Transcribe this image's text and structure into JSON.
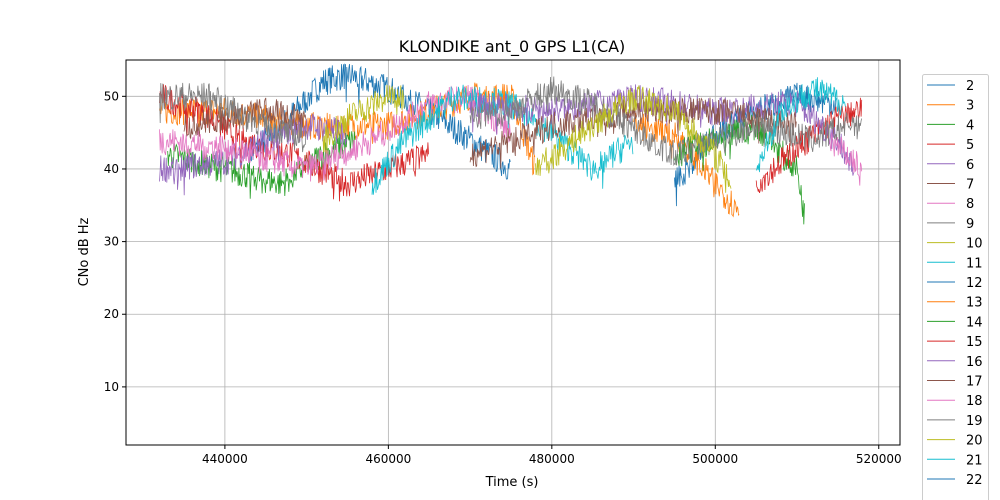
{
  "chart_data": {
    "type": "line",
    "title": "KLONDIKE ant_0 GPS L1(CA)",
    "xlabel": "Time (s)",
    "ylabel": "CNo dB Hz",
    "xlim": [
      427900,
      522600
    ],
    "ylim": [
      2,
      55
    ],
    "xticks": [
      440000,
      460000,
      480000,
      500000,
      520000
    ],
    "yticks": [
      10,
      20,
      30,
      40,
      50
    ],
    "grid": true,
    "legend_placement": "right-outside",
    "colors": [
      "#1f77b4",
      "#ff7f0e",
      "#2ca02c",
      "#d62728",
      "#9467bd",
      "#8c564b",
      "#e377c2",
      "#7f7f7f",
      "#bcbd22",
      "#17becf"
    ],
    "series": [
      {
        "name": "2",
        "points": [
          [
            443000,
            42
          ],
          [
            447000,
            46
          ],
          [
            452000,
            52
          ],
          [
            455000,
            53
          ],
          [
            460000,
            51
          ],
          [
            465000,
            48
          ],
          [
            470000,
            44
          ],
          [
            475000,
            40
          ]
        ]
      },
      {
        "name": "3",
        "points": [
          [
            432000,
            48
          ],
          [
            440000,
            48
          ],
          [
            450000,
            46
          ],
          [
            460000,
            46
          ],
          [
            470000,
            50
          ],
          [
            475000,
            50
          ],
          [
            478000,
            40
          ]
        ]
      },
      {
        "name": "4",
        "points": [
          [
            433000,
            42
          ],
          [
            440000,
            40
          ],
          [
            447000,
            38
          ],
          [
            452000,
            42
          ],
          [
            456000,
            44
          ]
        ]
      },
      {
        "name": "5",
        "points": [
          [
            432000,
            50
          ],
          [
            437000,
            48
          ],
          [
            442000,
            44
          ],
          [
            448000,
            42
          ],
          [
            455000,
            38
          ],
          [
            460000,
            40
          ],
          [
            465000,
            42
          ]
        ]
      },
      {
        "name": "6",
        "points": [
          [
            432000,
            40
          ],
          [
            440000,
            41
          ],
          [
            445000,
            44
          ],
          [
            450000,
            46
          ],
          [
            455000,
            45
          ]
        ]
      },
      {
        "name": "7",
        "points": [
          [
            435000,
            46
          ],
          [
            440000,
            47
          ],
          [
            445000,
            48
          ],
          [
            450000,
            47
          ]
        ]
      },
      {
        "name": "8",
        "points": [
          [
            432000,
            44
          ],
          [
            440000,
            43
          ],
          [
            450000,
            40
          ],
          [
            458000,
            44
          ],
          [
            465000,
            49
          ],
          [
            470000,
            50
          ],
          [
            475000,
            45
          ]
        ]
      },
      {
        "name": "9",
        "points": [
          [
            432000,
            50
          ],
          [
            438000,
            50
          ],
          [
            445000,
            46
          ],
          [
            450000,
            44
          ]
        ]
      },
      {
        "name": "10",
        "points": [
          [
            452000,
            44
          ],
          [
            455000,
            47
          ],
          [
            460000,
            50
          ],
          [
            462000,
            50
          ]
        ]
      },
      {
        "name": "11",
        "points": [
          [
            458000,
            38
          ],
          [
            462000,
            44
          ],
          [
            468000,
            50
          ],
          [
            475000,
            49
          ],
          [
            480000,
            45
          ],
          [
            485000,
            40
          ],
          [
            490000,
            44
          ]
        ]
      },
      {
        "name": "12",
        "points": [
          [
            495000,
            38
          ],
          [
            500000,
            45
          ],
          [
            505000,
            48
          ],
          [
            510000,
            50
          ],
          [
            515000,
            49
          ]
        ]
      },
      {
        "name": "13",
        "points": [
          [
            490000,
            46
          ],
          [
            495000,
            45
          ],
          [
            500000,
            38
          ],
          [
            503000,
            34
          ]
        ]
      },
      {
        "name": "14",
        "points": [
          [
            495000,
            42
          ],
          [
            500000,
            44
          ],
          [
            505000,
            46
          ],
          [
            510000,
            40
          ],
          [
            511000,
            33
          ]
        ]
      },
      {
        "name": "15",
        "points": [
          [
            505000,
            38
          ],
          [
            510000,
            43
          ],
          [
            515000,
            47
          ],
          [
            518000,
            48
          ]
        ]
      },
      {
        "name": "16",
        "points": [
          [
            470000,
            49
          ],
          [
            480000,
            48
          ],
          [
            490000,
            50
          ],
          [
            500000,
            48
          ],
          [
            510000,
            49
          ],
          [
            515000,
            44
          ],
          [
            517000,
            40
          ]
        ]
      },
      {
        "name": "17",
        "points": [
          [
            470000,
            42
          ],
          [
            480000,
            46
          ],
          [
            490000,
            48
          ],
          [
            500000,
            48
          ],
          [
            505000,
            47
          ],
          [
            510000,
            46
          ]
        ]
      },
      {
        "name": "18",
        "points": [
          [
            514000,
            44
          ],
          [
            516000,
            42
          ],
          [
            518000,
            40
          ]
        ]
      },
      {
        "name": "19",
        "points": [
          [
            470000,
            47
          ],
          [
            475000,
            48
          ],
          [
            480000,
            51
          ],
          [
            485000,
            49
          ],
          [
            495000,
            42
          ],
          [
            505000,
            46
          ],
          [
            512000,
            44
          ],
          [
            518000,
            47
          ]
        ]
      },
      {
        "name": "20",
        "points": [
          [
            478000,
            40
          ],
          [
            485000,
            46
          ],
          [
            490000,
            50
          ],
          [
            495000,
            48
          ],
          [
            500000,
            42
          ],
          [
            502000,
            38
          ]
        ]
      },
      {
        "name": "21",
        "points": [
          [
            505000,
            40
          ],
          [
            508000,
            48
          ],
          [
            512000,
            51
          ],
          [
            516000,
            49
          ]
        ]
      },
      {
        "name": "22",
        "points": []
      }
    ]
  }
}
